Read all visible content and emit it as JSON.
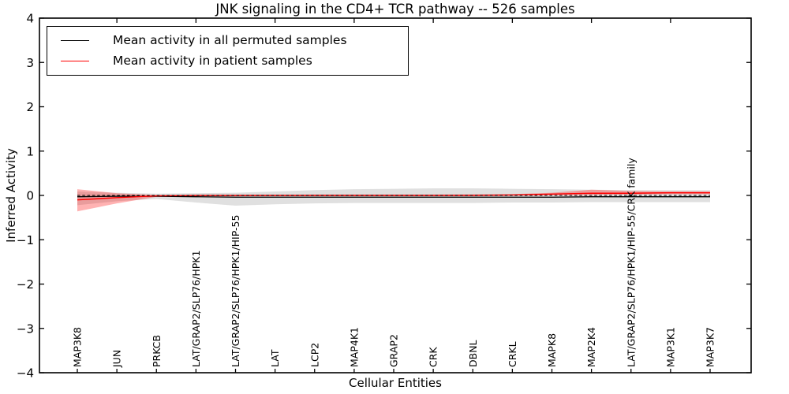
{
  "figure": {
    "title": "JNK signaling in the CD4+ TCR pathway -- 526 samples",
    "xlabel": "Cellular Entities",
    "ylabel": "Inferred Activity"
  },
  "legend": {
    "entries": [
      {
        "label": "Mean activity in all permuted samples",
        "color": "#000000"
      },
      {
        "label": "Mean activity in patient samples",
        "color": "#ff0000"
      }
    ]
  },
  "chart_data": {
    "type": "line",
    "title": "JNK signaling in the CD4+ TCR pathway -- 526 samples",
    "xlabel": "Cellular Entities",
    "ylabel": "Inferred Activity",
    "ylim": [
      -4,
      4
    ],
    "yticks": [
      4,
      3,
      2,
      1,
      0,
      -1,
      -2,
      -3,
      -4
    ],
    "grid": false,
    "legend_position": "upper left",
    "categories": [
      "MAP3K8",
      "JUN",
      "PRKCB",
      "LAT/GRAP2/SLP76/HPK1",
      "LAT/GRAP2/SLP76/HPK1/HIP-55",
      "LAT",
      "LCP2",
      "MAP4K1",
      "GRAP2",
      "CRK",
      "DBNL",
      "CRKL",
      "MAPK8",
      "MAP2K4",
      "LAT/GRAP2/SLP76/HPK1/HIP-55/CRK family",
      "MAP3K1",
      "MAP3K7"
    ],
    "series": [
      {
        "name": "Mean activity in all permuted samples",
        "color": "#000000",
        "style": "solid",
        "width": 1.3,
        "values": [
          -0.03,
          -0.02,
          -0.02,
          -0.03,
          -0.04,
          -0.04,
          -0.04,
          -0.04,
          -0.04,
          -0.04,
          -0.04,
          -0.04,
          -0.04,
          -0.03,
          -0.03,
          -0.03,
          -0.03
        ]
      },
      {
        "name": "Mean activity in patient samples",
        "color": "#ff0000",
        "style": "solid",
        "width": 1.5,
        "values": [
          -0.1,
          -0.05,
          -0.01,
          0.0,
          0.0,
          0.0,
          0.0,
          0.0,
          0.0,
          0.0,
          0.0,
          0.01,
          0.03,
          0.05,
          0.05,
          0.06,
          0.06
        ]
      },
      {
        "name": "zero-reference",
        "color": "#000000",
        "style": "dashed",
        "width": 1.1,
        "values": [
          0,
          0,
          0,
          0,
          0,
          0,
          0,
          0,
          0,
          0,
          0,
          0,
          0,
          0,
          0,
          0,
          0
        ]
      }
    ],
    "bands": [
      {
        "name": "permuted-samples-spread",
        "color": "#000000",
        "opacity": 0.12,
        "upper": [
          0.09,
          0.06,
          0.04,
          0.05,
          0.06,
          0.09,
          0.12,
          0.14,
          0.15,
          0.16,
          0.16,
          0.15,
          0.14,
          0.13,
          0.12,
          0.12,
          0.12
        ],
        "lower": [
          -0.22,
          -0.13,
          -0.08,
          -0.16,
          -0.23,
          -0.2,
          -0.18,
          -0.17,
          -0.17,
          -0.17,
          -0.17,
          -0.16,
          -0.16,
          -0.15,
          -0.15,
          -0.15,
          -0.15
        ]
      },
      {
        "name": "patient-samples-spread",
        "color": "#ff0000",
        "opacity": 0.3,
        "upper": [
          0.14,
          0.05,
          0.01,
          0.01,
          0.01,
          0.015,
          0.02,
          0.02,
          0.02,
          0.02,
          0.025,
          0.03,
          0.06,
          0.13,
          0.1,
          0.09,
          0.09
        ],
        "lower": [
          -0.36,
          -0.18,
          -0.03,
          -0.02,
          -0.02,
          -0.01,
          -0.01,
          -0.01,
          -0.01,
          -0.01,
          -0.005,
          0.0,
          0.005,
          0.01,
          0.02,
          0.03,
          0.03
        ]
      }
    ],
    "top_tick_category_indices": [
      1,
      3,
      5,
      7,
      9,
      11,
      13,
      15
    ]
  }
}
